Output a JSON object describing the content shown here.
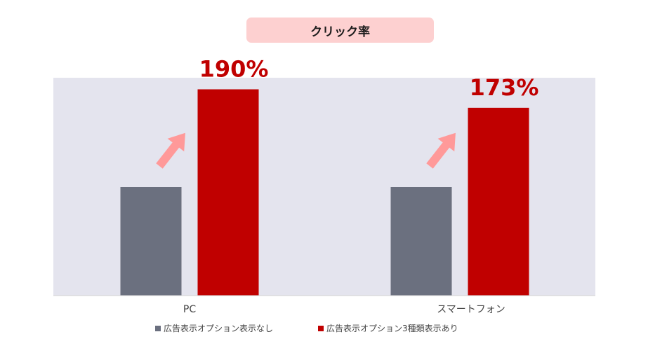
{
  "chart_data": {
    "type": "bar",
    "title": "クリック率",
    "categories": [
      "PC",
      "スマートフォン"
    ],
    "series": [
      {
        "name": "広告表示オプション表示なし",
        "color": "#6b707f",
        "values": [
          100,
          100
        ]
      },
      {
        "name": "広告表示オプション3種類表示あり",
        "color": "#c00000",
        "values": [
          190,
          173
        ]
      }
    ],
    "data_labels": [
      "190%",
      "173%"
    ],
    "ylim": [
      0,
      200
    ],
    "plot_background": "#e4e4ee",
    "arrow_color": "#ff9999",
    "grid": false,
    "legend_position": "bottom"
  }
}
